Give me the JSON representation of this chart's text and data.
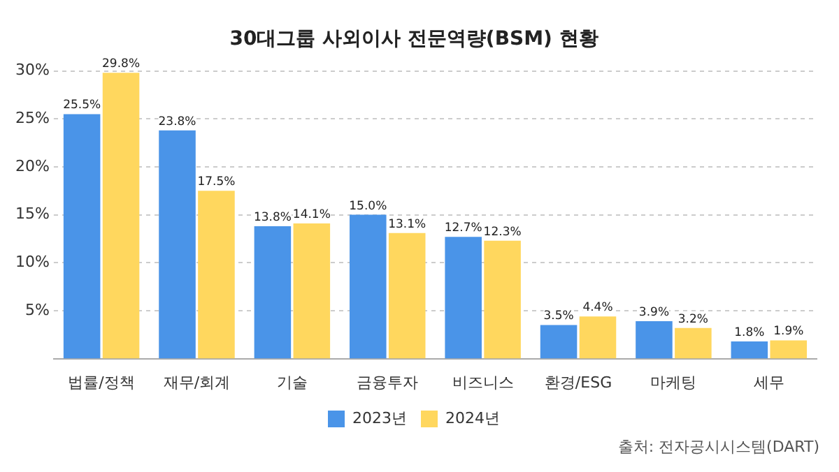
{
  "chart_data": {
    "type": "bar",
    "title": "30대그룹 사외이사 전문역량(BSM) 현황",
    "categories": [
      "법률/정책",
      "재무/회계",
      "기술",
      "금융투자",
      "비즈니스",
      "환경/ESG",
      "마케팅",
      "세무"
    ],
    "series": [
      {
        "name": "2023년",
        "color": "#4a94e8",
        "values": [
          25.5,
          23.8,
          13.8,
          15.0,
          12.7,
          3.5,
          3.9,
          1.8
        ],
        "value_labels": [
          "25.5%",
          "23.8%",
          "13.8%",
          "15.0%",
          "12.7%",
          "3.5%",
          "3.9%",
          "1.8%"
        ]
      },
      {
        "name": "2024년",
        "color": "#ffd75e",
        "values": [
          29.8,
          17.5,
          14.1,
          13.1,
          12.3,
          4.4,
          3.2,
          1.9
        ],
        "value_labels": [
          "29.8%",
          "17.5%",
          "14.1%",
          "13.1%",
          "12.3%",
          "4.4%",
          "3.2%",
          "1.9%"
        ]
      }
    ],
    "ylim": [
      0,
      30
    ],
    "yticks": [
      {
        "value": 5,
        "label": "5%"
      },
      {
        "value": 10,
        "label": "10%"
      },
      {
        "value": 15,
        "label": "15%"
      },
      {
        "value": 20,
        "label": "20%"
      },
      {
        "value": 25,
        "label": "25%"
      },
      {
        "value": 30,
        "label": "30%"
      }
    ],
    "grid": "y",
    "legend": "bottom",
    "annotations": [
      "출처: 전자공시시스템(DART)"
    ]
  }
}
